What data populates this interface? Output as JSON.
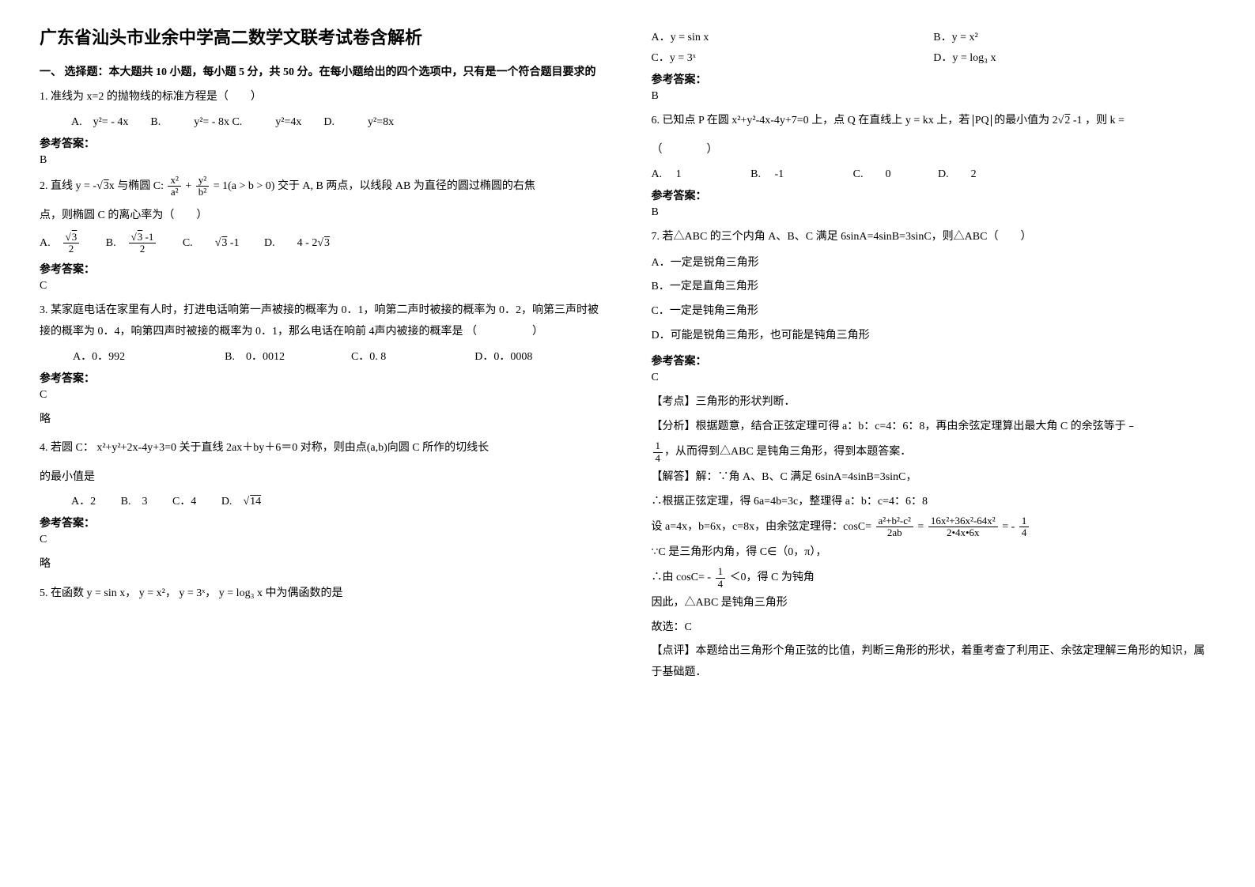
{
  "title": "广东省汕头市业余中学高二数学文联考试卷含解析",
  "section1_head": "一、 选择题：本大题共 10 小题，每小题 5 分，共 50 分。在每小题给出的四个选项中，只有是一个符合题目要求的",
  "q1": {
    "stem": "1. 准线为 x=2 的抛物线的标准方程是（　　）",
    "opts": "A.　y²= - 4x　　B.　　　y²= - 8x C.　　　y²=4x　　D.　　　y²=8x"
  },
  "ans_label": "参考答案：",
  "q1_ans": "B",
  "q2": {
    "prefix": "2. 直线 ",
    "eq1_lhs": "y = -",
    "eq1_rad": "3",
    "eq1_rhs": "x",
    "mid1": " 与椭圆 ",
    "ellipse_label": "C:",
    "num1": "x²",
    "den1": "a²",
    "plus": "+",
    "num2": "y²",
    "den2": "b²",
    "eq_tail": "= 1(a > b > 0)",
    "mid2": " 交于 A, B 两点，以线段 AB 为直径的圆过椭圆的右焦",
    "line2": "点，则椭圆 C 的离心率为（　　）",
    "optA_num": "3",
    "optA_den": "2",
    "optB_pre": "3",
    "optB_num_tail": " -1",
    "optB_den": "2",
    "optC_rad": "3",
    "optC_tail": " -1",
    "optD_pre": "4 - 2",
    "optD_rad": "3"
  },
  "q2_ans": "C",
  "q3": {
    "stem": "3. 某家庭电话在家里有人时，打进电话响第一声被接的概率为 0．1，响第二声时被接的概率为 0．2，响第三声时被接的概率为 0．4，响第四声时被接的概率为 0．1，那么电话在响前 4声内被接的概率是 （　　　　　）",
    "opts": "　　　A．0．992　　　　　　　　　B.　0．0012　　　　　　C．0. 8　　　　　　　　D．0．0008"
  },
  "q3_ans": "C",
  "q3_note": "略",
  "q4": {
    "pre": "4. 若圆 C：",
    "eq": "x²+y²+2x-4y+3=0",
    "mid": " 关于直线 2ax＋by＋6＝0 对称，则由点(a,b)向圆 C 所作的切线长",
    "line2": "的最小值是",
    "optA": "A．2",
    "optB": "B.　3",
    "optC": "C．4",
    "optD_pre": "D.　",
    "optD_rad": "14"
  },
  "q4_ans": "C",
  "q4_note": "略",
  "q5": {
    "pre": "5. 在函数 ",
    "f1": "y = sin x",
    "f2": "y = x²",
    "f3": "y = 3ˣ",
    "f4": "y = log₃ x",
    "tail": " 中为偶函数的是",
    "optA": "y = sin x",
    "optB": "y = x²",
    "optC": "y = 3ˣ",
    "optD": "y = log₃ x"
  },
  "q5_ans": "B",
  "q6": {
    "pre": "6. 已知点 P 在圆 ",
    "circ": "x²+y²-4x-4y+7=0",
    "mid1": " 上，点 Q 在直线上 ",
    "line_eq": "y = kx",
    "mid2": " 上，若 ",
    "pq": "PQ",
    "mid3": " 的最小值为 ",
    "val_pre": "2",
    "val_rad": "2",
    "val_tail": " -1",
    "mid4": "，则 k =",
    "line2": "（　　　　）",
    "optA": "A.　 1",
    "optB": "B. 　-1",
    "optC": "C.　　0",
    "optD": "D.　　2"
  },
  "q6_ans": "B",
  "q7": {
    "stem": "7. 若△ABC 的三个内角 A、B、C 满足 6sinA=4sinB=3sinC，则△ABC（　　）",
    "optA": "A．一定是锐角三角形",
    "optB": "B．一定是直角三角形",
    "optC": "C．一定是钝角三角形",
    "optD": "D．可能是锐角三角形，也可能是钝角三角形"
  },
  "q7_ans": "C",
  "q7_kp_label": "【考点】",
  "q7_kp": "三角形的形状判断．",
  "q7_fx_label": "【分析】",
  "q7_fx": "根据题意，结合正弦定理可得 a：b：c=4：6：8，再由余弦定理算出最大角 C 的余弦等于﹣",
  "q7_frac_num": "1",
  "q7_frac_den": "4",
  "q7_fx2": "，从而得到△ABC 是钝角三角形，得到本题答案．",
  "q7_jd_label": "【解答】",
  "q7_jd1": "解：∵角 A、B、C 满足 6sinA=4sinB=3sinC，",
  "q7_jd2": "∴根据正弦定理，得 6a=4b=3c，整理得 a：b：c=4：6：8",
  "q7_jd3_pre": "设 a=4x，b=6x，c=8x，由余弦定理得：cosC=",
  "q7_cos_num1": "a²+b²-c²",
  "q7_cos_den1": "2ab",
  "q7_eq": "=",
  "q7_cos_num2": "16x²+36x²-64x²",
  "q7_cos_den2": "2•4x•6x",
  "q7_cos_tail": "= -",
  "q7_cos_res_num": "1",
  "q7_cos_res_den": "4",
  "q7_jd4": "∵C 是三角形内角，得 C∈（0，π），",
  "q7_jd5_pre": "∴由 cosC= -",
  "q7_jd5_num": "1",
  "q7_jd5_den": "4",
  "q7_jd5_tail": " ＜0，得 C 为钝角",
  "q7_jd6": "因此，△ABC 是钝角三角形",
  "q7_jd7": "故选：C",
  "q7_dp_label": "【点评】",
  "q7_dp": "本题给出三角形个角正弦的比值，判断三角形的形状，着重考查了利用正、余弦定理解三角形的知识，属于基础题．"
}
